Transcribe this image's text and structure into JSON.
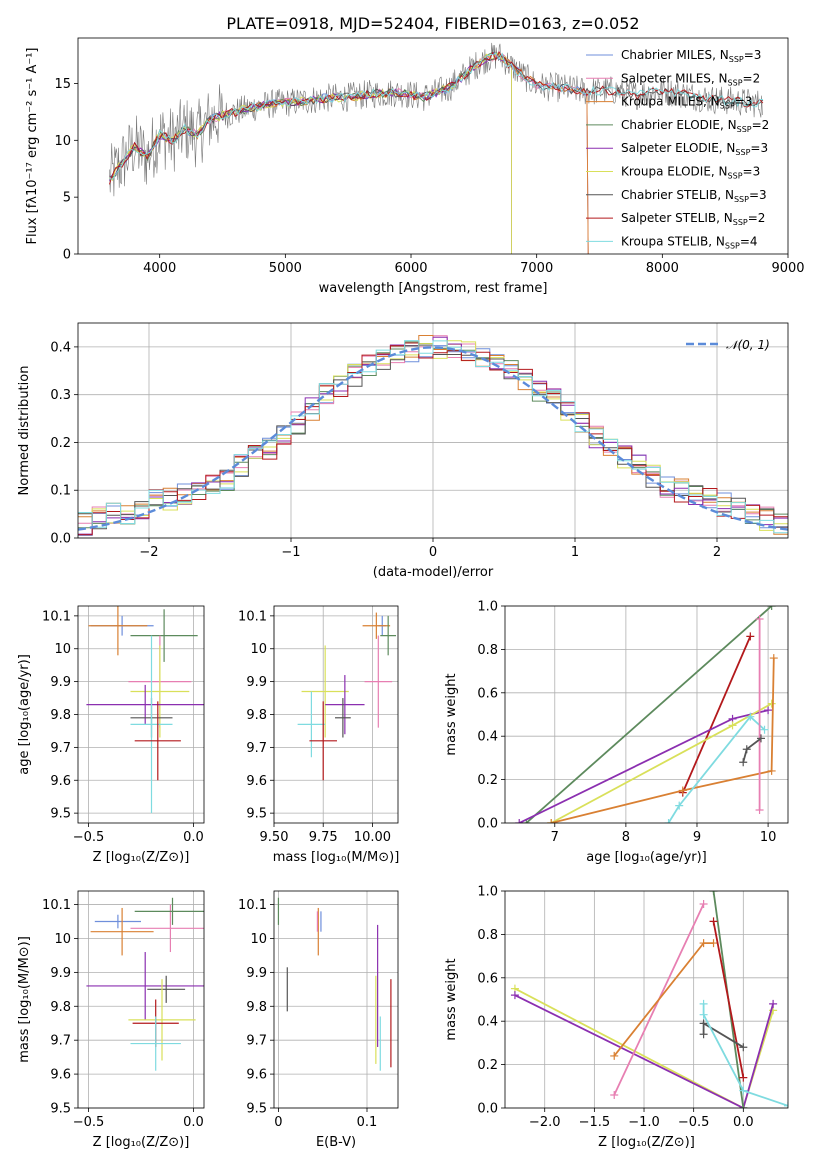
{
  "title": "PLATE=0918, MJD=52404, FIBERID=0163, z=0.052",
  "colors": {
    "Chabrier MILES": "#6f8fdb",
    "Salpeter MILES": "#e77fb2",
    "Kroupa MILES": "#d98033",
    "Chabrier ELODIE": "#5d8a5d",
    "Salpeter ELODIE": "#8b2fb0",
    "Kroupa ELODIE": "#d9e05a",
    "Chabrier STELIB": "#555555",
    "Salpeter STELIB": "#b3191c",
    "Kroupa STELIB": "#7fdbe0"
  },
  "chart_data": [
    {
      "id": "spectrum",
      "type": "line",
      "xlabel": "wavelength [Angstrom, rest frame]",
      "ylabel": "Flux [fλ10⁻¹⁷ erg cm⁻² s⁻¹ A⁻¹]",
      "xlim": [
        3350,
        9000
      ],
      "ylim": [
        0,
        19
      ],
      "xticks": [
        4000,
        5000,
        6000,
        7000,
        8000,
        9000
      ],
      "yticks": [
        0,
        5,
        10,
        15
      ],
      "grid": false,
      "legend": "right",
      "legend_entries": [
        {
          "model": "Chabrier MILES",
          "label": "Chabrier MILES, N",
          "sub": "SSP",
          "val": "=3"
        },
        {
          "model": "Salpeter MILES",
          "label": "Salpeter MILES, N",
          "sub": "SSP",
          "val": "=2"
        },
        {
          "model": "Kroupa MILES",
          "label": "Kroupa MILES, N",
          "sub": "SSP",
          "val": "=3"
        },
        {
          "model": "Chabrier ELODIE",
          "label": "Chabrier ELODIE, N",
          "sub": "SSP",
          "val": "=2"
        },
        {
          "model": "Salpeter ELODIE",
          "label": "Salpeter ELODIE, N",
          "sub": "SSP",
          "val": "=3"
        },
        {
          "model": "Kroupa ELODIE",
          "label": "Kroupa ELODIE, N",
          "sub": "SSP",
          "val": "=3"
        },
        {
          "model": "Chabrier STELIB",
          "label": "Chabrier STELIB, N",
          "sub": "SSP",
          "val": "=3"
        },
        {
          "model": "Salpeter STELIB",
          "label": "Salpeter STELIB, N",
          "sub": "SSP",
          "val": "=2"
        },
        {
          "model": "Kroupa STELIB",
          "label": "Kroupa STELIB, N",
          "sub": "SSP",
          "val": "=4"
        }
      ],
      "model_continuum": {
        "x": [
          3600,
          3700,
          3800,
          3900,
          4000,
          4100,
          4200,
          4300,
          4400,
          4500,
          4700,
          4900,
          5100,
          5300,
          5500,
          5700,
          5900,
          6100,
          6300,
          6400,
          6500,
          6600,
          6700,
          6800,
          7000,
          7200,
          7400,
          7600,
          7800,
          8000,
          8200,
          8400,
          8600,
          8800
        ],
        "y": [
          6.5,
          8,
          9.5,
          8.5,
          10.5,
          10,
          11,
          10.5,
          11.8,
          12.2,
          12.8,
          13.2,
          13.4,
          13.7,
          13.8,
          14.1,
          14.2,
          13.8,
          14.6,
          15.5,
          16.5,
          17.2,
          17.5,
          16.5,
          14.8,
          14.6,
          14.3,
          14.4,
          14.0,
          14.4,
          14.0,
          13.6,
          13.4,
          13.2
        ]
      },
      "model_extent": {
        "Chabrier MILES": 7410,
        "Salpeter MILES": 7410,
        "Kroupa MILES": 7410,
        "Chabrier ELODIE": 6800,
        "Salpeter ELODIE": 6800,
        "Kroupa ELODIE": 6800,
        "Chabrier STELIB": 8800,
        "Salpeter STELIB": 8800,
        "Kroupa STELIB": 8800
      }
    },
    {
      "id": "residuals",
      "type": "line",
      "xlabel": "(data-model)/error",
      "ylabel": "Normed distribution",
      "xlim": [
        -2.5,
        2.5
      ],
      "ylim": [
        0,
        0.45
      ],
      "xticks": [
        -2,
        -1,
        0,
        1,
        2
      ],
      "yticks": [
        0.0,
        0.1,
        0.2,
        0.3,
        0.4
      ],
      "grid": true,
      "legend": "top-right",
      "gaussian_label": "𝒩(0, 1)",
      "histogram": {
        "bin_width": 0.1,
        "x": [
          -2.5,
          -2.4,
          -2.3,
          -2.2,
          -2.1,
          -2.0,
          -1.9,
          -1.8,
          -1.7,
          -1.6,
          -1.5,
          -1.4,
          -1.3,
          -1.2,
          -1.1,
          -1.0,
          -0.9,
          -0.8,
          -0.7,
          -0.6,
          -0.5,
          -0.4,
          -0.3,
          -0.2,
          -0.1,
          0.0,
          0.1,
          0.2,
          0.3,
          0.4,
          0.5,
          0.6,
          0.7,
          0.8,
          0.9,
          1.0,
          1.1,
          1.2,
          1.3,
          1.4,
          1.5,
          1.6,
          1.7,
          1.8,
          1.9,
          2.0,
          2.1,
          2.2,
          2.3,
          2.4
        ],
        "values": [
          0.03,
          0.04,
          0.05,
          0.05,
          0.06,
          0.08,
          0.08,
          0.09,
          0.1,
          0.11,
          0.12,
          0.15,
          0.17,
          0.19,
          0.21,
          0.24,
          0.27,
          0.3,
          0.32,
          0.34,
          0.36,
          0.37,
          0.38,
          0.39,
          0.4,
          0.4,
          0.39,
          0.39,
          0.38,
          0.37,
          0.35,
          0.33,
          0.31,
          0.29,
          0.26,
          0.24,
          0.21,
          0.19,
          0.17,
          0.15,
          0.13,
          0.11,
          0.1,
          0.09,
          0.08,
          0.07,
          0.06,
          0.05,
          0.04,
          0.03
        ]
      }
    },
    {
      "id": "age-vs-Z",
      "type": "scatter",
      "xlabel": "Z [log₁₀(Z/Z⊙)]",
      "ylabel": "age  [log₁₀(age/yr)]",
      "xlim": [
        -0.55,
        0.05
      ],
      "ylim": [
        9.47,
        10.13
      ],
      "xticks": [
        -0.5,
        0.0
      ],
      "xticklabels": [
        "−0.5",
        "0.0"
      ],
      "yticks": [
        9.5,
        9.6,
        9.7,
        9.8,
        9.9,
        10.0,
        10.1
      ],
      "grid": true,
      "points": [
        {
          "model": "Chabrier MILES",
          "x": -0.34,
          "xerr": 0.15,
          "y": 10.07,
          "yerr": 0.03
        },
        {
          "model": "Kroupa MILES",
          "x": -0.36,
          "xerr": 0.14,
          "y": 10.07,
          "yerr": 0.09
        },
        {
          "model": "Chabrier ELODIE",
          "x": -0.14,
          "xerr": 0.16,
          "y": 10.04,
          "yerr": 0.08
        },
        {
          "model": "Salpeter MILES",
          "x": -0.16,
          "xerr": 0.15,
          "y": 9.9,
          "yerr": 0.14
        },
        {
          "model": "Kroupa ELODIE",
          "x": -0.16,
          "xerr": 0.14,
          "y": 9.87,
          "yerr": 0.14
        },
        {
          "model": "Salpeter ELODIE",
          "x": -0.23,
          "xerr": 0.28,
          "y": 9.83,
          "yerr": 0.06
        },
        {
          "model": "Chabrier STELIB",
          "x": -0.2,
          "xerr": 0.1,
          "y": 9.79,
          "yerr": 0.06
        },
        {
          "model": "Kroupa STELIB",
          "x": -0.2,
          "xerr": 0.1,
          "y": 9.77,
          "yerr": 0.27
        },
        {
          "model": "Salpeter STELIB",
          "x": -0.17,
          "xerr": 0.11,
          "y": 9.72,
          "yerr": 0.12
        }
      ]
    },
    {
      "id": "age-vs-mass",
      "type": "scatter",
      "xlabel": "mass [log₁₀(M/M⊙)]",
      "ylabel": "",
      "xlim": [
        9.5,
        10.13
      ],
      "ylim": [
        9.47,
        10.13
      ],
      "xticks": [
        9.5,
        9.75,
        10.0
      ],
      "xticklabels": [
        "9.50",
        "9.75",
        "10.00"
      ],
      "yticks": [
        9.5,
        9.6,
        9.7,
        9.8,
        9.9,
        10.0,
        10.1
      ],
      "grid": true,
      "points": [
        {
          "model": "Chabrier MILES",
          "x": 10.05,
          "xerr": 0.02,
          "y": 10.07,
          "yerr": 0.03
        },
        {
          "model": "Kroupa MILES",
          "x": 10.02,
          "xerr": 0.07,
          "y": 10.07,
          "yerr": 0.04
        },
        {
          "model": "Chabrier ELODIE",
          "x": 10.08,
          "xerr": 0.04,
          "y": 10.04,
          "yerr": 0.06
        },
        {
          "model": "Salpeter MILES",
          "x": 10.03,
          "xerr": 0.07,
          "y": 9.9,
          "yerr": 0.14
        },
        {
          "model": "Kroupa ELODIE",
          "x": 9.76,
          "xerr": 0.12,
          "y": 9.87,
          "yerr": 0.14
        },
        {
          "model": "Salpeter ELODIE",
          "x": 9.86,
          "xerr": 0.1,
          "y": 9.83,
          "yerr": 0.09
        },
        {
          "model": "Chabrier STELIB",
          "x": 9.85,
          "xerr": 0.04,
          "y": 9.79,
          "yerr": 0.06
        },
        {
          "model": "Kroupa STELIB",
          "x": 9.69,
          "xerr": 0.07,
          "y": 9.77,
          "yerr": 0.1
        },
        {
          "model": "Salpeter STELIB",
          "x": 9.75,
          "xerr": 0.07,
          "y": 9.72,
          "yerr": 0.12
        }
      ]
    },
    {
      "id": "weight-vs-age",
      "type": "line",
      "xlabel": "age  [log₁₀(age/yr)]",
      "ylabel": "mass weight",
      "xlim": [
        6.3,
        10.28
      ],
      "ylim": [
        0,
        1.0
      ],
      "xticks": [
        7,
        8,
        9,
        10
      ],
      "yticks": [
        0.0,
        0.2,
        0.4,
        0.6,
        0.8,
        1.0
      ],
      "grid": true,
      "series": [
        {
          "model": "Chabrier ELODIE",
          "x": [
            6.6,
            10.05
          ],
          "y": [
            0.0,
            1.0
          ]
        },
        {
          "model": "Salpeter STELIB",
          "x": [
            8.8,
            9.75
          ],
          "y": [
            0.14,
            0.86
          ]
        },
        {
          "model": "Salpeter ELODIE",
          "x": [
            6.5,
            9.5,
            10.0
          ],
          "y": [
            0.0,
            0.48,
            0.52
          ]
        },
        {
          "model": "Kroupa ELODIE",
          "x": [
            6.95,
            9.5,
            10.05
          ],
          "y": [
            0.0,
            0.45,
            0.55
          ]
        },
        {
          "model": "Kroupa MILES",
          "x": [
            6.95,
            8.8,
            10.05,
            10.08
          ],
          "y": [
            0.0,
            0.15,
            0.24,
            0.76
          ]
        },
        {
          "model": "Kroupa STELIB",
          "x": [
            8.6,
            8.75,
            9.75,
            9.95
          ],
          "y": [
            0.0,
            0.08,
            0.49,
            0.43
          ]
        },
        {
          "model": "Salpeter MILES",
          "x": [
            9.88,
            9.88
          ],
          "y": [
            0.06,
            0.94
          ]
        },
        {
          "model": "Chabrier STELIB",
          "x": [
            9.65,
            9.7,
            9.9
          ],
          "y": [
            0.28,
            0.34,
            0.39
          ]
        }
      ]
    },
    {
      "id": "mass-vs-Z",
      "type": "scatter",
      "xlabel": "Z [log₁₀(Z/Z⊙)]",
      "ylabel": "mass [log₁₀(M/M⊙)]",
      "xlim": [
        -0.55,
        0.05
      ],
      "ylim": [
        9.5,
        10.14
      ],
      "xticks": [
        -0.5,
        0.0
      ],
      "xticklabels": [
        "−0.5",
        "0.0"
      ],
      "yticks": [
        9.5,
        9.6,
        9.7,
        9.8,
        9.9,
        10.0,
        10.1
      ],
      "grid": true,
      "points": [
        {
          "model": "Chabrier MILES",
          "x": -0.36,
          "xerr": 0.11,
          "y": 10.05,
          "yerr": 0.02
        },
        {
          "model": "Kroupa MILES",
          "x": -0.34,
          "xerr": 0.15,
          "y": 10.02,
          "yerr": 0.07
        },
        {
          "model": "Salpeter MILES",
          "x": -0.11,
          "xerr": 0.19,
          "y": 10.03,
          "yerr": 0.07
        },
        {
          "model": "Chabrier ELODIE",
          "x": -0.1,
          "xerr": 0.18,
          "y": 10.08,
          "yerr": 0.04
        },
        {
          "model": "Salpeter ELODIE",
          "x": -0.23,
          "xerr": 0.28,
          "y": 9.86,
          "yerr": 0.1
        },
        {
          "model": "Chabrier STELIB",
          "x": -0.13,
          "xerr": 0.09,
          "y": 9.85,
          "yerr": 0.04
        },
        {
          "model": "Kroupa ELODIE",
          "x": -0.15,
          "xerr": 0.16,
          "y": 9.76,
          "yerr": 0.12
        },
        {
          "model": "Salpeter STELIB",
          "x": -0.18,
          "xerr": 0.11,
          "y": 9.75,
          "yerr": 0.07
        },
        {
          "model": "Kroupa STELIB",
          "x": -0.18,
          "xerr": 0.12,
          "y": 9.69,
          "yerr": 0.08
        }
      ]
    },
    {
      "id": "mass-vs-ebv",
      "type": "scatter",
      "xlabel": "E(B-V)",
      "ylabel": "",
      "xlim": [
        -0.005,
        0.135
      ],
      "ylim": [
        9.5,
        10.14
      ],
      "xticks": [
        0.0,
        0.1
      ],
      "yticks": [
        9.5,
        9.6,
        9.7,
        9.8,
        9.9,
        10.0,
        10.1
      ],
      "grid": true,
      "points": [
        {
          "model": "Chabrier ELODIE",
          "x": 0.0,
          "y": 10.08,
          "yerr": 0.04
        },
        {
          "model": "Chabrier STELIB",
          "x": 0.01,
          "y": 9.85,
          "yerr": 0.065
        },
        {
          "model": "Kroupa MILES",
          "x": 0.045,
          "y": 10.02,
          "yerr": 0.07
        },
        {
          "model": "Chabrier MILES",
          "x": 0.048,
          "y": 10.05,
          "yerr": 0.03
        },
        {
          "model": "Salpeter MILES",
          "x": 0.044,
          "y": 10.05,
          "yerr": 0.03
        },
        {
          "model": "Salpeter ELODIE",
          "x": 0.112,
          "y": 9.86,
          "yerr": 0.18
        },
        {
          "model": "Kroupa ELODIE",
          "x": 0.11,
          "y": 9.76,
          "yerr": 0.13
        },
        {
          "model": "Kroupa STELIB",
          "x": 0.115,
          "y": 9.69,
          "yerr": 0.08
        },
        {
          "model": "Salpeter STELIB",
          "x": 0.127,
          "y": 9.75,
          "yerr": 0.13
        }
      ]
    },
    {
      "id": "weight-vs-Z",
      "type": "line",
      "xlabel": "Z [log₁₀(Z/Z⊙)]",
      "ylabel": "mass weight",
      "xlim": [
        -2.4,
        0.45
      ],
      "ylim": [
        0,
        1.0
      ],
      "xticks": [
        -2.0,
        -1.5,
        -1.0,
        -0.5,
        0.0
      ],
      "xticklabels": [
        "−2.0",
        "−1.5",
        "−1.0",
        "−0.5",
        "0.0"
      ],
      "yticks": [
        0.0,
        0.2,
        0.4,
        0.6,
        0.8,
        1.0
      ],
      "grid": true,
      "series": [
        {
          "model": "Kroupa ELODIE",
          "x": [
            -2.3,
            0.0,
            0.3
          ],
          "y": [
            0.55,
            0.0,
            0.45
          ]
        },
        {
          "model": "Salpeter ELODIE",
          "x": [
            -2.3,
            0.0,
            0.3
          ],
          "y": [
            0.52,
            0.0,
            0.48
          ]
        },
        {
          "model": "Salpeter MILES",
          "x": [
            -1.3,
            -0.4
          ],
          "y": [
            0.06,
            0.94
          ]
        },
        {
          "model": "Kroupa MILES",
          "x": [
            -1.3,
            -0.4,
            -0.3
          ],
          "y": [
            0.24,
            0.76,
            0.76
          ]
        },
        {
          "model": "Chabrier ELODIE",
          "x": [
            -0.3,
            0.0
          ],
          "y": [
            1.0,
            0.0
          ]
        },
        {
          "model": "Salpeter STELIB",
          "x": [
            -0.3,
            0.0
          ],
          "y": [
            0.86,
            0.14
          ]
        },
        {
          "model": "Chabrier STELIB",
          "x": [
            -0.4,
            -0.4,
            0.0
          ],
          "y": [
            0.34,
            0.39,
            0.28
          ]
        },
        {
          "model": "Kroupa STELIB",
          "x": [
            -0.4,
            -0.4,
            0.0,
            0.45
          ],
          "y": [
            0.48,
            0.43,
            0.08,
            0.01
          ]
        }
      ]
    }
  ]
}
